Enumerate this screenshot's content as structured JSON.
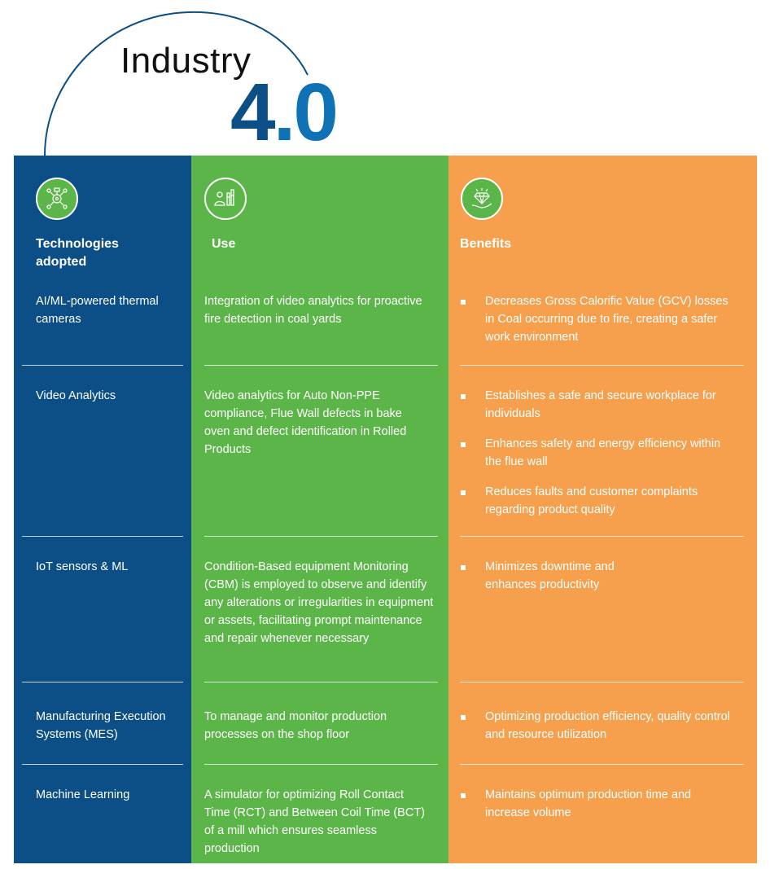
{
  "title": {
    "word": "Industry",
    "number_4": "4",
    "number_dot0": ".0"
  },
  "colors": {
    "tech": "#0b4f86",
    "use": "#5cb548",
    "benefits": "#f6a04d",
    "accent_blue": "#0e72b4"
  },
  "columns": {
    "tech": {
      "header": "Technologies adopted",
      "icon": "ai-network-icon"
    },
    "use": {
      "header": "Use",
      "icon": "people-stats-icon"
    },
    "benefits": {
      "header": "Benefits",
      "icon": "diamond-hand-icon"
    }
  },
  "rows": [
    {
      "tech": "AI/ML-powered thermal cameras",
      "use": "Integration of video analytics for proactive fire detection in coal yards",
      "benefits": [
        "Decreases Gross Calorific Value (GCV) losses in Coal occurring due to fire, creating a safer work environment"
      ]
    },
    {
      "tech": "Video Analytics",
      "use": "Video analytics for Auto Non-PPE compliance, Flue Wall defects in bake oven and defect identification in Rolled Products",
      "benefits": [
        "Establishes a safe and secure workplace for individuals",
        "Enhances safety and energy efficiency within the flue wall",
        "Reduces faults and customer complaints regarding product quality"
      ]
    },
    {
      "tech": "IoT sensors & ML",
      "use": "Condition-Based equipment Monitoring (CBM) is employed to observe and identify any alterations or irregularities in equipment or assets, facilitating prompt maintenance and repair whenever necessary",
      "benefits": [
        "Minimizes downtime and enhances productivity"
      ]
    },
    {
      "tech": "Manufacturing Execution Systems (MES)",
      "use": "To manage and monitor production processes on the shop floor",
      "benefits": [
        "Optimizing production efficiency, quality control and resource utilization"
      ]
    },
    {
      "tech": "Machine Learning",
      "use": "A simulator for optimizing Roll Contact Time (RCT) and Between Coil Time (BCT) of a mill which ensures seamless production",
      "benefits": [
        "Maintains optimum production time and increase volume"
      ]
    }
  ]
}
